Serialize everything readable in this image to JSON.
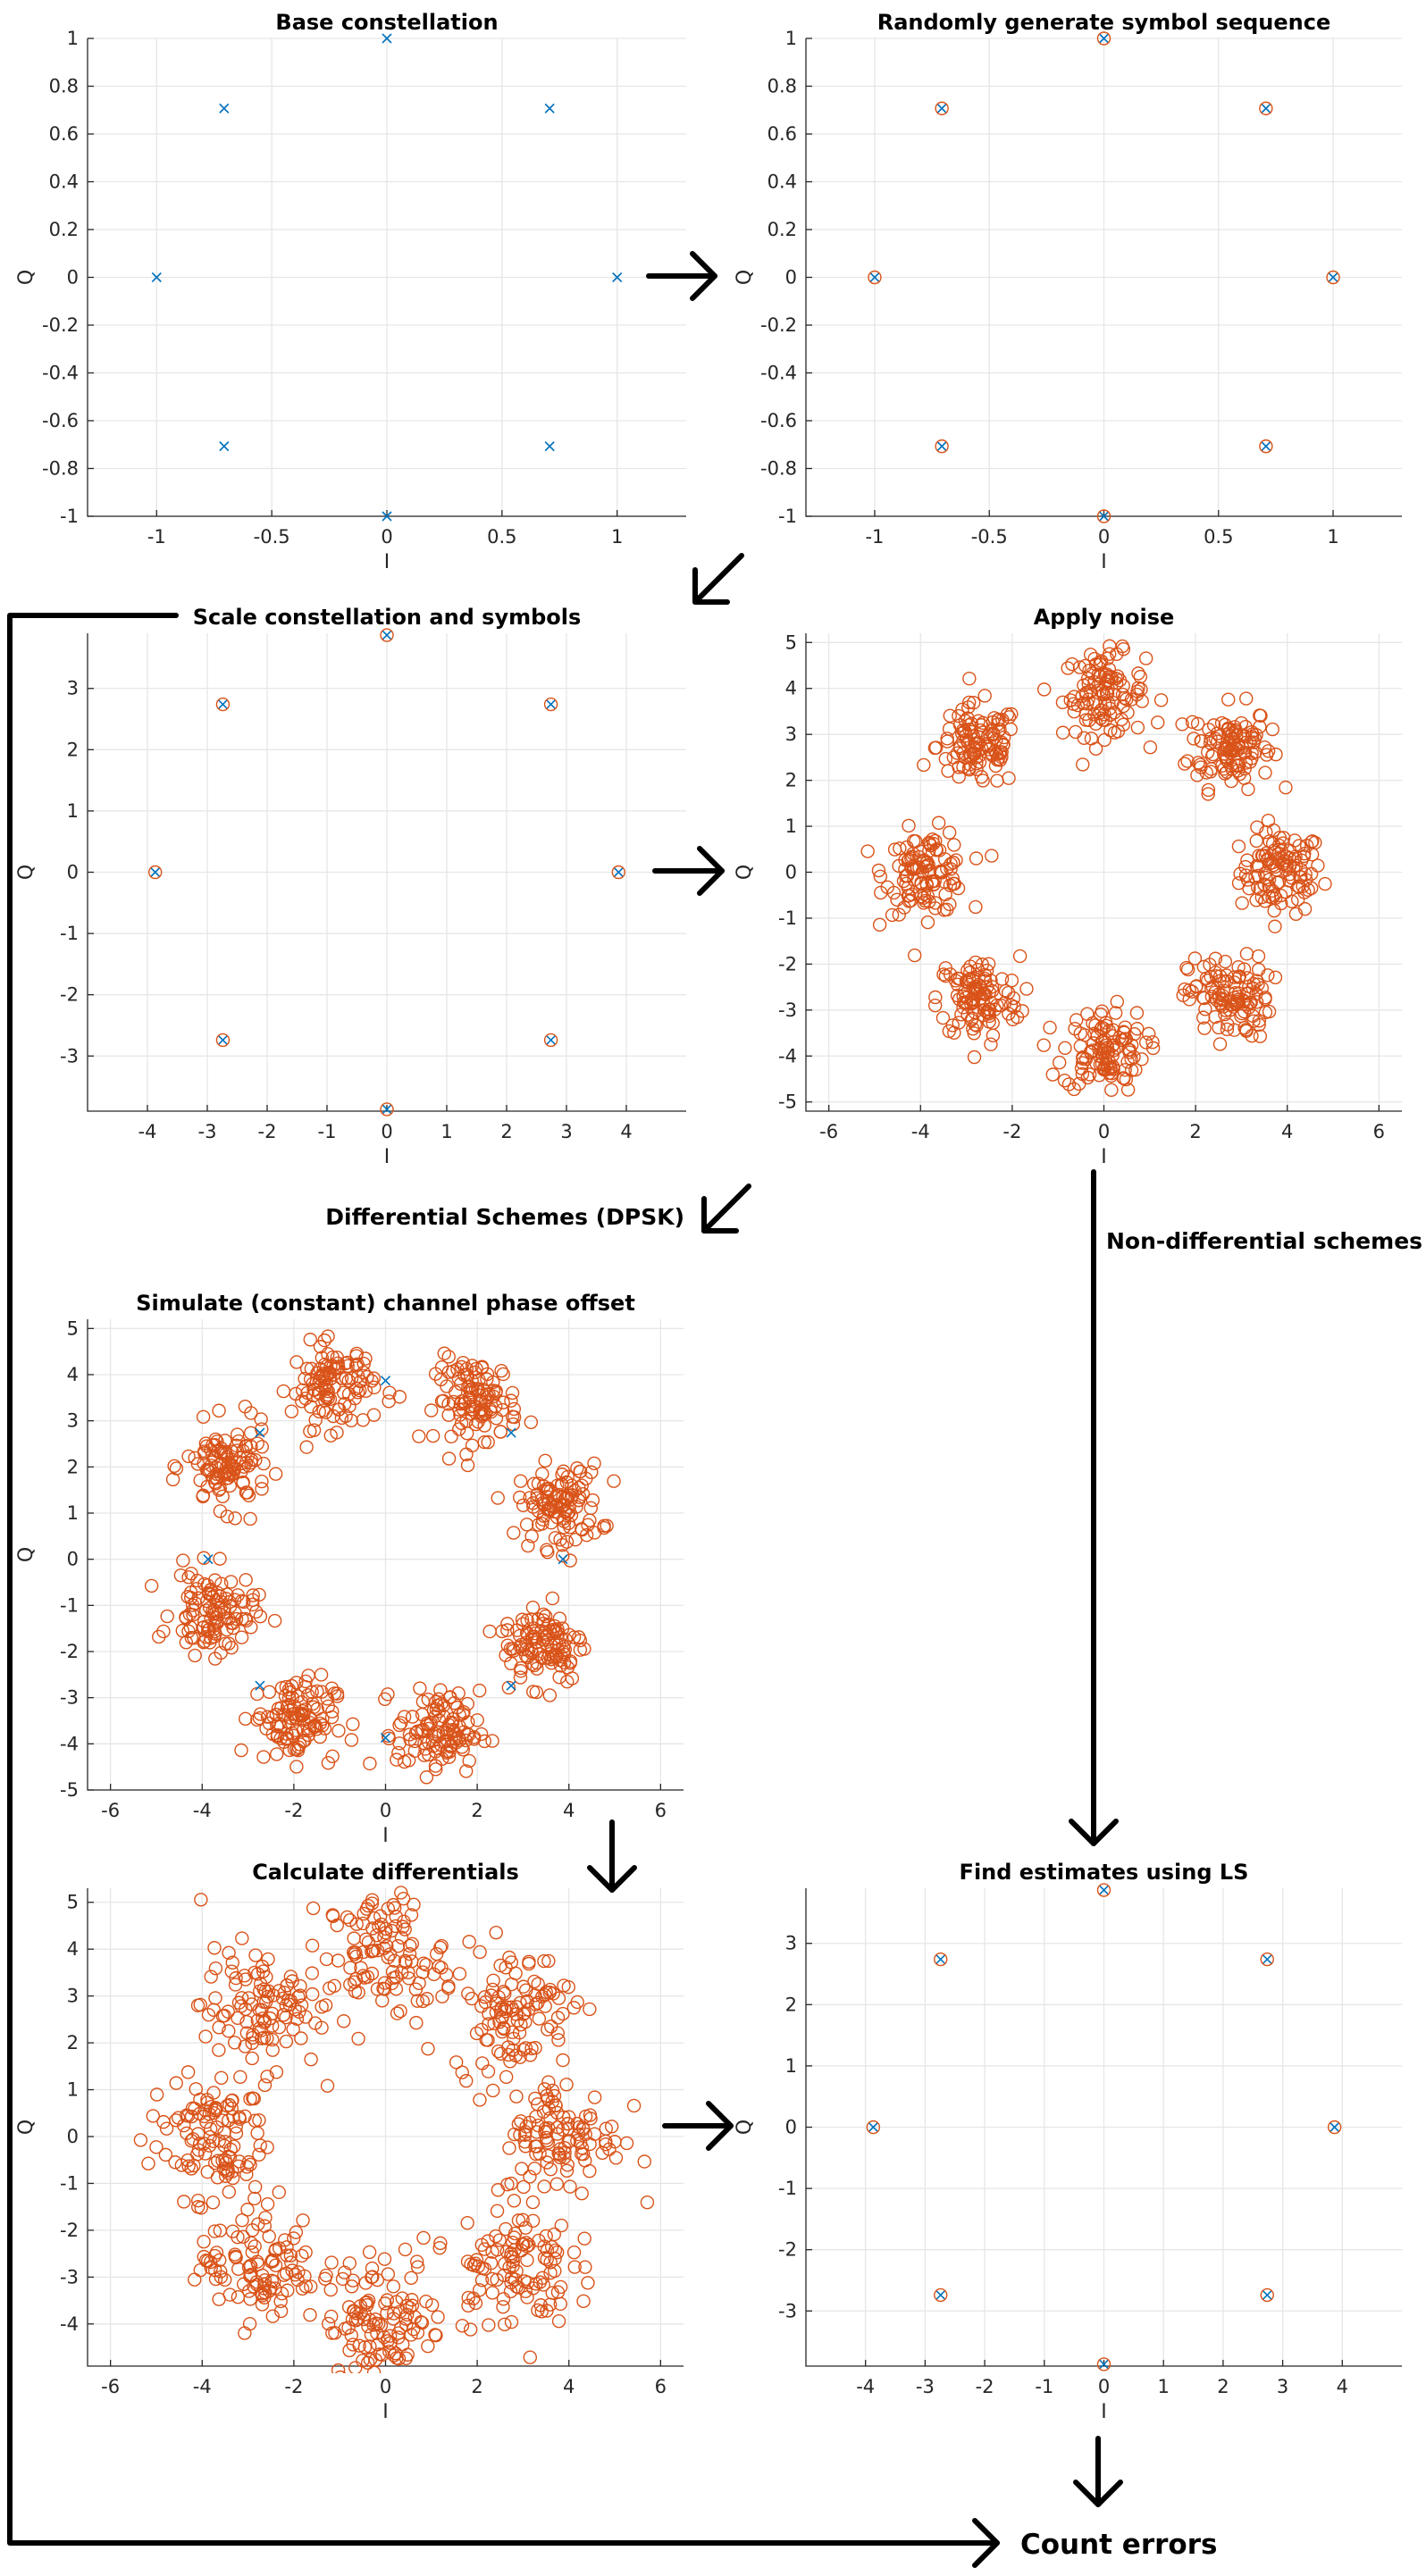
{
  "flow": {
    "differential_label": "Differential Schemes (DPSK)",
    "nondifferential_label": "Non-differential schemes",
    "final_label": "Count errors"
  },
  "colors": {
    "constellation": "#0072bd",
    "symbols": "#d95319",
    "grid": "#e6e6e6",
    "axis": "#262626"
  },
  "chart_data": [
    {
      "type": "scatter",
      "title": "Base constellation",
      "xlabel": "I",
      "ylabel": "Q",
      "xlim": [
        -1.3,
        1.3
      ],
      "ylim": [
        -1,
        1
      ],
      "xticks": [
        -1,
        -0.5,
        0,
        0.5,
        1
      ],
      "yticks": [
        -1,
        -0.8,
        -0.6,
        -0.4,
        -0.2,
        0,
        0.2,
        0.4,
        0.6,
        0.8,
        1
      ],
      "grid": true,
      "series": [
        {
          "marker": "x",
          "color": "#0072bd",
          "points": [
            [
              1,
              0
            ],
            [
              0.707,
              0.707
            ],
            [
              0,
              1
            ],
            [
              -0.707,
              0.707
            ],
            [
              -1,
              0
            ],
            [
              -0.707,
              -0.707
            ],
            [
              0,
              -1
            ],
            [
              0.707,
              -0.707
            ]
          ]
        }
      ]
    },
    {
      "type": "scatter",
      "title": "Randomly generate symbol sequence",
      "xlabel": "I",
      "ylabel": "Q",
      "xlim": [
        -1.3,
        1.3
      ],
      "ylim": [
        -1,
        1
      ],
      "xticks": [
        -1,
        -0.5,
        0,
        0.5,
        1
      ],
      "yticks": [
        -1,
        -0.8,
        -0.6,
        -0.4,
        -0.2,
        0,
        0.2,
        0.4,
        0.6,
        0.8,
        1
      ],
      "grid": true,
      "series": [
        {
          "marker": "x",
          "color": "#0072bd",
          "points": [
            [
              1,
              0
            ],
            [
              0.707,
              0.707
            ],
            [
              0,
              1
            ],
            [
              -0.707,
              0.707
            ],
            [
              -1,
              0
            ],
            [
              -0.707,
              -0.707
            ],
            [
              0,
              -1
            ],
            [
              0.707,
              -0.707
            ]
          ]
        },
        {
          "marker": "o",
          "color": "#d95319",
          "points": [
            [
              1,
              0
            ],
            [
              0.707,
              0.707
            ],
            [
              0,
              1
            ],
            [
              -0.707,
              0.707
            ],
            [
              -1,
              0
            ],
            [
              -0.707,
              -0.707
            ],
            [
              0,
              -1
            ],
            [
              0.707,
              -0.707
            ]
          ]
        }
      ]
    },
    {
      "type": "scatter",
      "title": "Scale constellation and symbols",
      "xlabel": "I",
      "ylabel": "Q",
      "xlim": [
        -5,
        5
      ],
      "ylim": [
        -3.9,
        3.9
      ],
      "xticks": [
        -4,
        -3,
        -2,
        -1,
        0,
        1,
        2,
        3,
        4
      ],
      "yticks": [
        -3,
        -2,
        -1,
        0,
        1,
        2,
        3
      ],
      "grid": true,
      "series": [
        {
          "marker": "x",
          "color": "#0072bd",
          "points": [
            [
              3.87,
              0
            ],
            [
              2.74,
              2.74
            ],
            [
              0,
              3.87
            ],
            [
              -2.74,
              2.74
            ],
            [
              -3.87,
              0
            ],
            [
              -2.74,
              -2.74
            ],
            [
              0,
              -3.87
            ],
            [
              2.74,
              -2.74
            ]
          ]
        },
        {
          "marker": "o",
          "color": "#d95319",
          "points": [
            [
              3.87,
              0
            ],
            [
              2.74,
              2.74
            ],
            [
              0,
              3.87
            ],
            [
              -2.74,
              2.74
            ],
            [
              -3.87,
              0
            ],
            [
              -2.74,
              -2.74
            ],
            [
              0,
              -3.87
            ],
            [
              2.74,
              -2.74
            ]
          ]
        }
      ]
    },
    {
      "type": "scatter",
      "title": "Apply noise",
      "xlabel": "I",
      "ylabel": "Q",
      "xlim": [
        -6.5,
        6.5
      ],
      "ylim": [
        -5.2,
        5.2
      ],
      "xticks": [
        -6,
        -4,
        -2,
        0,
        2,
        4,
        6
      ],
      "yticks": [
        -5,
        -4,
        -3,
        -2,
        -1,
        0,
        1,
        2,
        3,
        4,
        5
      ],
      "grid": true,
      "series": [
        {
          "marker": "o",
          "color": "#d95319",
          "cloud": {
            "centers": [
              [
                3.87,
                0
              ],
              [
                2.74,
                2.74
              ],
              [
                0,
                3.87
              ],
              [
                -2.74,
                2.74
              ],
              [
                -3.87,
                0
              ],
              [
                -2.74,
                -2.74
              ],
              [
                0,
                -3.87
              ],
              [
                2.74,
                -2.74
              ]
            ],
            "per_cluster": 110,
            "spread": 0.45
          }
        }
      ]
    },
    {
      "type": "scatter",
      "title": "Simulate (constant) channel phase offset",
      "xlabel": "I",
      "ylabel": "Q",
      "xlim": [
        -6.5,
        6.5
      ],
      "ylim": [
        -5,
        5.2
      ],
      "xticks": [
        -6,
        -4,
        -2,
        0,
        2,
        4,
        6
      ],
      "yticks": [
        -5,
        -4,
        -3,
        -2,
        -1,
        0,
        1,
        2,
        3,
        4,
        5
      ],
      "grid": true,
      "series": [
        {
          "marker": "o",
          "color": "#d95319",
          "cloud": {
            "centers": [
              [
                3.8,
                1.15
              ],
              [
                2.0,
                3.45
              ],
              [
                -1.15,
                3.75
              ],
              [
                -3.45,
                2.0
              ],
              [
                -3.75,
                -1.15
              ],
              [
                -2.0,
                -3.45
              ],
              [
                1.15,
                -3.75
              ],
              [
                3.45,
                -1.8
              ]
            ],
            "per_cluster": 110,
            "spread": 0.45
          }
        },
        {
          "marker": "x",
          "color": "#0072bd",
          "points": [
            [
              3.87,
              0
            ],
            [
              2.74,
              2.74
            ],
            [
              0,
              3.87
            ],
            [
              -2.74,
              2.74
            ],
            [
              -3.87,
              0
            ],
            [
              -2.74,
              -2.74
            ],
            [
              0,
              -3.87
            ],
            [
              2.74,
              -2.74
            ]
          ]
        }
      ]
    },
    {
      "type": "scatter",
      "title": "Calculate differentials",
      "xlabel": "I",
      "ylabel": "Q",
      "xlim": [
        -6.5,
        6.5
      ],
      "ylim": [
        -4.9,
        5.3
      ],
      "xticks": [
        -6,
        -4,
        -2,
        0,
        2,
        4,
        6
      ],
      "yticks": [
        -4,
        -3,
        -2,
        -1,
        0,
        1,
        2,
        3,
        4,
        5
      ],
      "grid": true,
      "series": [
        {
          "marker": "o",
          "color": "#d95319",
          "cloud": {
            "centers": [
              [
                3.87,
                0
              ],
              [
                2.74,
                2.74
              ],
              [
                0,
                3.87
              ],
              [
                -2.74,
                2.74
              ],
              [
                -3.87,
                0
              ],
              [
                -2.74,
                -2.74
              ],
              [
                0,
                -3.87
              ],
              [
                2.74,
                -2.74
              ]
            ],
            "per_cluster": 110,
            "spread": 0.65
          }
        }
      ]
    },
    {
      "type": "scatter",
      "title": "Find estimates using LS",
      "xlabel": "I",
      "ylabel": "Q",
      "xlim": [
        -5,
        5
      ],
      "ylim": [
        -3.9,
        3.9
      ],
      "xticks": [
        -4,
        -3,
        -2,
        -1,
        0,
        1,
        2,
        3,
        4
      ],
      "yticks": [
        -3,
        -2,
        -1,
        0,
        1,
        2,
        3
      ],
      "grid": true,
      "series": [
        {
          "marker": "x",
          "color": "#0072bd",
          "points": [
            [
              3.87,
              0
            ],
            [
              2.74,
              2.74
            ],
            [
              0,
              3.87
            ],
            [
              -2.74,
              2.74
            ],
            [
              -3.87,
              0
            ],
            [
              -2.74,
              -2.74
            ],
            [
              0,
              -3.87
            ],
            [
              2.74,
              -2.74
            ]
          ]
        },
        {
          "marker": "o",
          "color": "#d95319",
          "points": [
            [
              3.87,
              0
            ],
            [
              2.74,
              2.74
            ],
            [
              0,
              3.87
            ],
            [
              -2.74,
              2.74
            ],
            [
              -3.87,
              0
            ],
            [
              -2.74,
              -2.74
            ],
            [
              0,
              -3.87
            ],
            [
              2.74,
              -2.74
            ]
          ]
        }
      ]
    }
  ]
}
